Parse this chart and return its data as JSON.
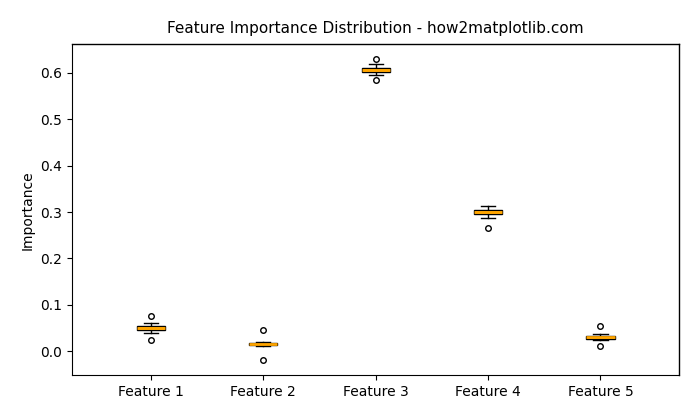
{
  "title": "Feature Importance Distribution - how2matplotlib.com",
  "ylabel": "Importance",
  "categories": [
    "Feature 1",
    "Feature 2",
    "Feature 3",
    "Feature 4",
    "Feature 5"
  ],
  "box_facecolor": "#FFA500",
  "box_edgecolor": "black",
  "median_color": "#FFA500",
  "whisker_color": "black",
  "cap_color": "black",
  "flier_color": "black",
  "figsize": [
    7.0,
    4.2
  ],
  "dpi": 100,
  "seed": 42,
  "background_color": "#ffffff",
  "feature_data": {
    "f1": {
      "values": [
        0.05,
        0.05,
        0.048,
        0.052,
        0.045,
        0.055,
        0.04,
        0.06,
        0.047,
        0.053,
        0.05,
        0.049,
        0.051,
        0.046,
        0.054,
        0.043,
        0.057,
        0.044,
        0.056,
        0.05,
        0.025,
        0.075
      ]
    },
    "f2": {
      "values": [
        0.015,
        0.016,
        0.014,
        0.017,
        0.013,
        0.018,
        0.012,
        0.019,
        0.015,
        0.016,
        0.014,
        0.017,
        0.013,
        0.015,
        0.016,
        0.014,
        0.015,
        0.016,
        0.013,
        0.017,
        0.045,
        -0.02
      ]
    },
    "f3": {
      "values": [
        0.605,
        0.61,
        0.6,
        0.608,
        0.602,
        0.612,
        0.598,
        0.615,
        0.595,
        0.62,
        0.605,
        0.607,
        0.603,
        0.609,
        0.601,
        0.611,
        0.599,
        0.606,
        0.604,
        0.608,
        0.585,
        0.63
      ]
    },
    "f4": {
      "values": [
        0.3,
        0.305,
        0.295,
        0.31,
        0.29,
        0.308,
        0.292,
        0.312,
        0.288,
        0.3,
        0.302,
        0.298,
        0.305,
        0.295,
        0.301,
        0.299,
        0.303,
        0.297,
        0.304,
        0.296,
        0.265
      ]
    },
    "f5": {
      "values": [
        0.03,
        0.032,
        0.028,
        0.034,
        0.026,
        0.035,
        0.025,
        0.036,
        0.024,
        0.033,
        0.029,
        0.031,
        0.027,
        0.033,
        0.028,
        0.032,
        0.026,
        0.034,
        0.027,
        0.031,
        0.01,
        0.055
      ]
    }
  }
}
